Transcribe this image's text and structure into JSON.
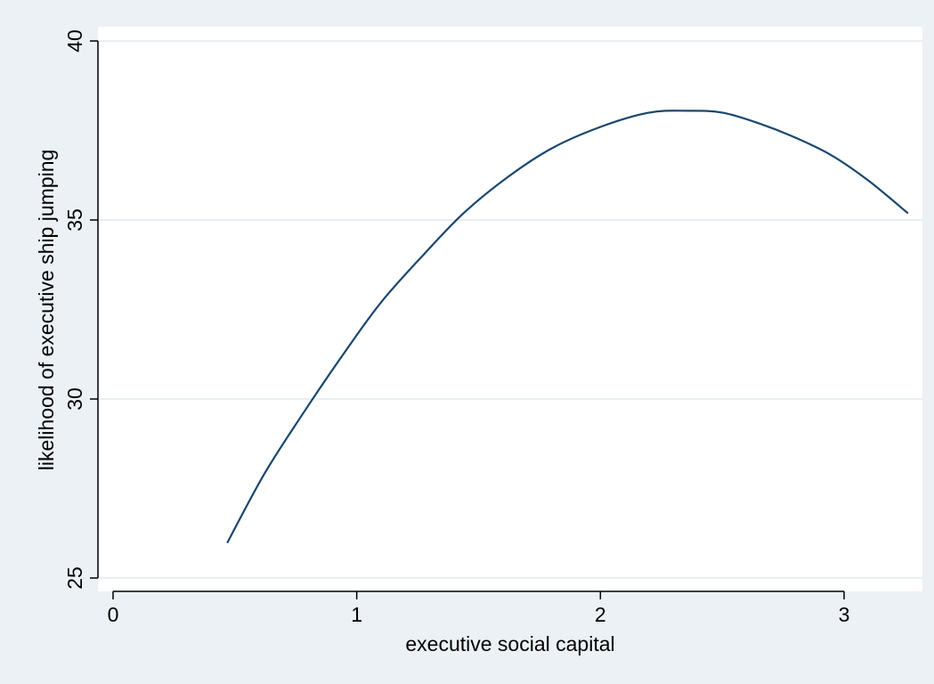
{
  "chart_data": {
    "type": "line",
    "title": "",
    "xlabel": "executive social capital",
    "ylabel": "likelihood of executive ship jumping",
    "xlim": [
      -0.06,
      3.3
    ],
    "ylim": [
      24.6,
      40.0
    ],
    "xticks": [
      0,
      1,
      2,
      3
    ],
    "yticks": [
      25,
      30,
      35,
      40
    ],
    "xtick_labels": [
      "0",
      "1",
      "2",
      "3"
    ],
    "ytick_labels": [
      "25",
      "30",
      "35",
      "40"
    ],
    "grid": "horizontal",
    "legend": "none",
    "series": [
      {
        "x": [
          0.47,
          0.62,
          0.78,
          0.95,
          1.1,
          1.27,
          1.44,
          1.62,
          1.8,
          2.0,
          2.2,
          2.36,
          2.5,
          2.65,
          2.8,
          2.95,
          3.1,
          3.26
        ],
        "y": [
          26.0,
          27.9,
          29.6,
          31.3,
          32.7,
          34.0,
          35.2,
          36.2,
          37.0,
          37.6,
          38.0,
          38.05,
          38.0,
          37.7,
          37.3,
          36.8,
          36.1,
          35.2
        ],
        "color": "#1a476f"
      }
    ]
  },
  "colors": {
    "background": "#ebf1f4",
    "plot_area": "#ffffff",
    "gridline": "#e8eef2",
    "line": "#1a476f",
    "axis": "#000000"
  }
}
